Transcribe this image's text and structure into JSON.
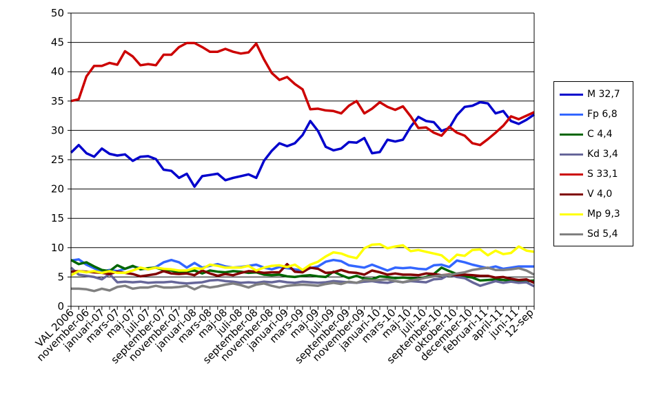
{
  "chart_data": {
    "type": "line",
    "title": "",
    "xlabel": "",
    "ylabel": "",
    "ylim": [
      0,
      50
    ],
    "yticks": [
      "0",
      "5",
      "10",
      "15",
      "20",
      "25",
      "30",
      "35",
      "40",
      "45",
      "50"
    ],
    "grid": true,
    "legend_position": "right",
    "tick_labels": [
      "VAL 2006",
      "november-06",
      "januari-07",
      "mars-07",
      "maj-07",
      "juli-07",
      "september-07",
      "november-07",
      "januari-08",
      "mars-08",
      "maj-08",
      "juli-08",
      "september-08",
      "november-08",
      "januari-09",
      "mars-09",
      "maj-09",
      "juli-09",
      "september-09",
      "november-09",
      "januari-10",
      "mars-10",
      "maj-10",
      "juli-10",
      "september-10",
      "oktober-10",
      "december-10",
      "februari-11",
      "april-11",
      "juni-11",
      "12-sep"
    ],
    "series": [
      {
        "name": "M 32,7",
        "color": "#0000cc",
        "values": [
          26.2,
          27.5,
          26.1,
          25.5,
          26.9,
          26.0,
          25.7,
          25.9,
          24.8,
          25.5,
          25.6,
          25.1,
          23.3,
          23.1,
          21.9,
          22.6,
          20.4,
          22.2,
          22.4,
          22.6,
          21.5,
          21.9,
          22.2,
          22.5,
          21.9,
          24.8,
          26.5,
          27.8,
          27.3,
          27.8,
          29.2,
          31.6,
          29.9,
          27.2,
          26.6,
          26.9,
          28.0,
          27.9,
          28.7,
          26.1,
          26.3,
          28.4,
          28.1,
          28.4,
          30.6,
          32.3,
          31.6,
          31.4,
          29.9,
          30.4,
          32.6,
          34.0,
          34.2,
          34.8,
          34.6,
          32.9,
          33.3,
          31.6,
          31.1,
          31.8,
          32.7
        ]
      },
      {
        "name": "Fp 6,8",
        "color": "#3366ff",
        "values": [
          7.8,
          8.0,
          7.1,
          6.5,
          5.9,
          6.2,
          6.0,
          6.4,
          6.8,
          6.5,
          6.3,
          6.7,
          7.5,
          7.9,
          7.5,
          6.6,
          7.4,
          6.6,
          6.9,
          7.2,
          6.8,
          6.6,
          6.7,
          6.9,
          7.1,
          6.6,
          6.3,
          6.7,
          6.5,
          6.3,
          6.1,
          6.5,
          6.8,
          7.6,
          7.9,
          7.7,
          7.0,
          6.8,
          6.6,
          7.1,
          6.6,
          6.1,
          6.6,
          6.5,
          6.6,
          6.4,
          6.3,
          7.0,
          7.1,
          6.7,
          7.8,
          7.5,
          7.1,
          6.8,
          6.5,
          6.8,
          6.4,
          6.6,
          6.8,
          6.8,
          6.8
        ]
      },
      {
        "name": "C 4,4",
        "color": "#006600",
        "values": [
          7.9,
          7.2,
          7.5,
          6.8,
          6.2,
          6.0,
          7.0,
          6.4,
          6.9,
          6.3,
          6.5,
          6.6,
          6.2,
          6.1,
          5.7,
          5.9,
          6.1,
          5.6,
          6.1,
          5.9,
          5.8,
          6.0,
          5.9,
          5.7,
          5.8,
          5.4,
          5.3,
          5.4,
          5.1,
          5.0,
          5.2,
          5.3,
          5.1,
          5.0,
          5.9,
          5.3,
          4.8,
          5.2,
          4.7,
          4.6,
          5.1,
          5.0,
          4.8,
          4.9,
          4.8,
          4.7,
          5.0,
          5.5,
          6.6,
          6.0,
          5.5,
          5.1,
          4.9,
          4.4,
          4.5,
          4.6,
          4.5,
          4.4,
          4.4,
          4.3,
          4.4
        ]
      },
      {
        "name": "Kd 3,4",
        "color": "#666699",
        "values": [
          6.6,
          5.4,
          5.2,
          5.0,
          4.6,
          5.5,
          4.1,
          4.2,
          4.1,
          4.2,
          4.0,
          4.1,
          4.1,
          4.2,
          4.0,
          3.9,
          4.0,
          4.1,
          4.4,
          4.5,
          4.3,
          4.2,
          4.0,
          4.1,
          4.0,
          4.2,
          4.1,
          4.3,
          4.1,
          4.0,
          4.2,
          4.1,
          4.0,
          4.1,
          4.3,
          4.2,
          4.1,
          4.0,
          4.2,
          4.3,
          4.1,
          4.0,
          4.3,
          4.1,
          4.3,
          4.2,
          4.1,
          4.6,
          4.7,
          5.4,
          5.0,
          4.8,
          4.1,
          3.5,
          3.9,
          4.3,
          4.0,
          4.2,
          4.0,
          4.1,
          3.4
        ]
      },
      {
        "name": "S 33,1",
        "color": "#cc0000",
        "values": [
          35.0,
          35.3,
          39.2,
          41.0,
          41.0,
          41.5,
          41.2,
          43.5,
          42.6,
          41.1,
          41.3,
          41.1,
          42.9,
          42.9,
          44.2,
          44.9,
          44.9,
          44.2,
          43.4,
          43.4,
          43.9,
          43.4,
          43.1,
          43.3,
          44.8,
          42.1,
          39.8,
          38.6,
          39.1,
          37.9,
          37.0,
          33.6,
          33.7,
          33.4,
          33.3,
          32.9,
          34.2,
          35.0,
          32.9,
          33.7,
          34.8,
          34.0,
          33.5,
          34.1,
          32.4,
          30.4,
          30.5,
          29.6,
          29.1,
          30.6,
          29.6,
          29.1,
          27.8,
          27.5,
          28.5,
          29.6,
          30.8,
          32.4,
          31.9,
          32.5,
          33.1
        ]
      },
      {
        "name": "V 4,0",
        "color": "#800000",
        "values": [
          5.9,
          6.0,
          5.9,
          5.8,
          5.7,
          5.5,
          5.9,
          5.7,
          5.5,
          5.1,
          5.3,
          5.5,
          6.0,
          5.6,
          5.5,
          5.6,
          5.3,
          6.1,
          5.6,
          5.2,
          5.5,
          5.3,
          5.7,
          6.0,
          5.9,
          5.7,
          5.8,
          5.8,
          7.2,
          5.9,
          5.8,
          6.6,
          6.4,
          5.7,
          5.8,
          6.2,
          5.8,
          5.7,
          5.4,
          6.1,
          5.8,
          5.4,
          5.6,
          5.4,
          5.4,
          5.3,
          5.6,
          5.5,
          5.3,
          5.4,
          5.3,
          5.4,
          5.3,
          5.2,
          5.2,
          4.9,
          5.0,
          4.7,
          4.5,
          4.6,
          4.0
        ]
      },
      {
        "name": "Mp 9,3",
        "color": "#ffff00",
        "values": [
          5.3,
          6.0,
          5.8,
          6.0,
          5.7,
          6.0,
          5.7,
          5.7,
          6.1,
          6.6,
          6.3,
          6.6,
          6.4,
          6.3,
          6.1,
          6.1,
          6.5,
          6.4,
          7.1,
          6.9,
          6.6,
          6.6,
          6.6,
          6.9,
          6.1,
          6.6,
          6.9,
          7.0,
          6.7,
          7.1,
          6.2,
          7.1,
          7.6,
          8.5,
          9.2,
          9.0,
          8.5,
          8.2,
          9.9,
          10.5,
          10.6,
          9.9,
          10.2,
          10.4,
          9.4,
          9.6,
          9.3,
          9.0,
          8.7,
          7.6,
          8.8,
          8.6,
          9.6,
          9.7,
          8.7,
          9.5,
          8.9,
          9.1,
          10.2,
          9.5,
          9.3
        ]
      },
      {
        "name": "Sd 5,4",
        "color": "#808080",
        "values": [
          3.0,
          3.0,
          2.9,
          2.6,
          3.0,
          2.7,
          3.3,
          3.5,
          3.0,
          3.2,
          3.2,
          3.5,
          3.2,
          3.2,
          3.3,
          3.5,
          2.9,
          3.5,
          3.2,
          3.4,
          3.7,
          3.9,
          3.6,
          3.2,
          3.7,
          3.9,
          3.5,
          3.2,
          3.5,
          3.6,
          3.7,
          3.6,
          3.5,
          3.8,
          4.0,
          3.8,
          4.2,
          4.0,
          4.5,
          4.4,
          4.5,
          4.6,
          4.3,
          4.1,
          4.4,
          4.6,
          4.9,
          5.1,
          5.3,
          5.3,
          5.6,
          5.8,
          6.2,
          6.4,
          6.6,
          6.2,
          6.2,
          6.3,
          6.5,
          6.1,
          5.4
        ]
      }
    ]
  }
}
